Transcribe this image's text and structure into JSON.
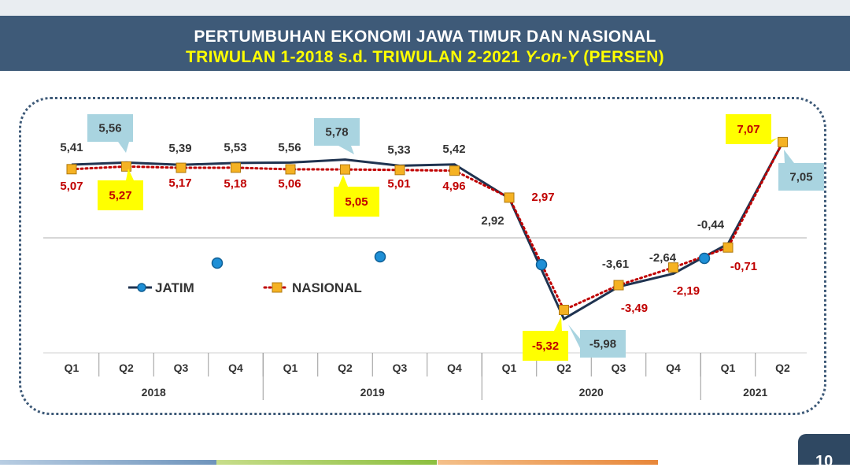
{
  "header": {
    "title_line1": "PERTUMBUHAN EKONOMI JAWA TIMUR DAN NASIONAL",
    "title_line2_part1": "TRIWULAN 1-2018 s.d. TRIWULAN 2-2021 ",
    "title_line2_yoy": "Y-on-Y",
    "title_line2_part2": " (PERSEN)"
  },
  "page_number": "10",
  "chart_data": {
    "type": "line",
    "title": "PERTUMBUHAN EKONOMI JAWA TIMUR DAN NASIONAL TRIWULAN 1-2018 s.d. TRIWULAN 2-2021 Y-on-Y (PERSEN)",
    "categories": [
      "Q1",
      "Q2",
      "Q3",
      "Q4",
      "Q1",
      "Q2",
      "Q3",
      "Q4",
      "Q1",
      "Q2",
      "Q3",
      "Q4",
      "Q1",
      "Q2"
    ],
    "year_groups": [
      {
        "label": "2018",
        "start": 0,
        "count": 4
      },
      {
        "label": "2019",
        "start": 4,
        "count": 4
      },
      {
        "label": "2020",
        "start": 8,
        "count": 4
      },
      {
        "label": "2021",
        "start": 12,
        "count": 2
      }
    ],
    "series": [
      {
        "name": "JATIM",
        "values": [
          5.41,
          5.56,
          5.39,
          5.53,
          5.56,
          5.78,
          5.33,
          5.42,
          2.92,
          -5.98,
          -3.61,
          -2.64,
          -0.44,
          7.05
        ],
        "labels": [
          "5,41",
          "5,56",
          "5,39",
          "5,53",
          "5,56",
          "5,78",
          "5,33",
          "5,42",
          "2,92",
          "-5,98",
          "-3,61",
          "-2,64",
          "-0,44",
          "7,05"
        ],
        "color": "#1f3350",
        "marker_color": "#1e8fd6"
      },
      {
        "name": "NASIONAL",
        "values": [
          5.07,
          5.27,
          5.17,
          5.18,
          5.06,
          5.05,
          5.01,
          4.96,
          2.97,
          -5.32,
          -3.49,
          -2.19,
          -0.71,
          7.07
        ],
        "labels": [
          "5,07",
          "5,27",
          "5,17",
          "5,18",
          "5,06",
          "5,05",
          "5,01",
          "4,96",
          "2,97",
          "-5,32",
          "-3,49",
          "-2,19",
          "-0,71",
          "7,07"
        ],
        "color": "#c00000",
        "marker_color": "#f5b223"
      }
    ],
    "ylim": [
      -8,
      8
    ],
    "grid": false,
    "legend": "inside-left",
    "colors": {
      "jatim_callout": "#a9d4e0",
      "nasional_callout": "#ffff00",
      "label_dark": "#333333",
      "label_red": "#c00000"
    }
  }
}
